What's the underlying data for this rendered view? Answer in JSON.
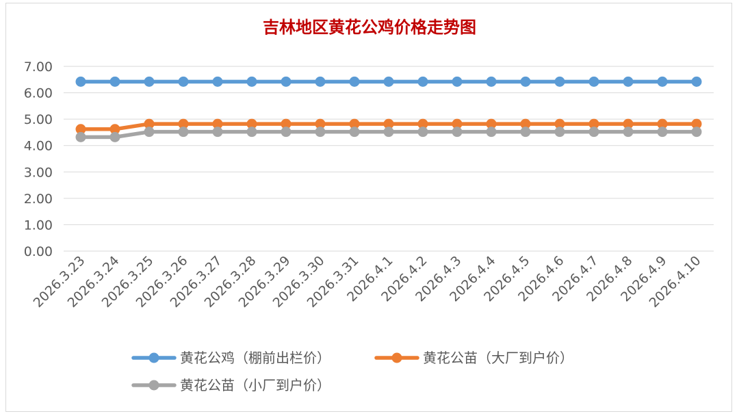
{
  "chart_data": {
    "type": "line",
    "title": "吉林地区黄花公鸡价格走势图",
    "categories": [
      "2026.3.23",
      "2026.3.24",
      "2026.3.25",
      "2026.3.26",
      "2026.3.27",
      "2026.3.28",
      "2026.3.29",
      "2026.3.30",
      "2026.3.31",
      "2026.4.1",
      "2026.4.2",
      "2026.4.3",
      "2026.4.4",
      "2026.4.5",
      "2026.4.6",
      "2026.4.7",
      "2026.4.8",
      "2026.4.9",
      "2026.4.10"
    ],
    "yticks": [
      "0.00",
      "1.00",
      "2.00",
      "3.00",
      "4.00",
      "5.00",
      "6.00",
      "7.00"
    ],
    "ylim": [
      0,
      7
    ],
    "grid": true,
    "legend_position": "bottom",
    "series": [
      {
        "name": "黄花公鸡（棚前出栏价）",
        "color": "#5b9bd5",
        "values": [
          6.42,
          6.42,
          6.42,
          6.42,
          6.42,
          6.42,
          6.42,
          6.42,
          6.42,
          6.42,
          6.42,
          6.42,
          6.42,
          6.42,
          6.42,
          6.42,
          6.42,
          6.42,
          6.42
        ]
      },
      {
        "name": "黄花公苗（大厂到户价）",
        "color": "#ed7d31",
        "values": [
          4.62,
          4.62,
          4.82,
          4.82,
          4.82,
          4.82,
          4.82,
          4.82,
          4.82,
          4.82,
          4.82,
          4.82,
          4.82,
          4.82,
          4.82,
          4.82,
          4.82,
          4.82,
          4.82
        ]
      },
      {
        "name": "黄花公苗（小厂到户价）",
        "color": "#a5a5a5",
        "values": [
          4.32,
          4.32,
          4.52,
          4.52,
          4.52,
          4.52,
          4.52,
          4.52,
          4.52,
          4.52,
          4.52,
          4.52,
          4.52,
          4.52,
          4.52,
          4.52,
          4.52,
          4.52,
          4.52
        ]
      }
    ]
  }
}
